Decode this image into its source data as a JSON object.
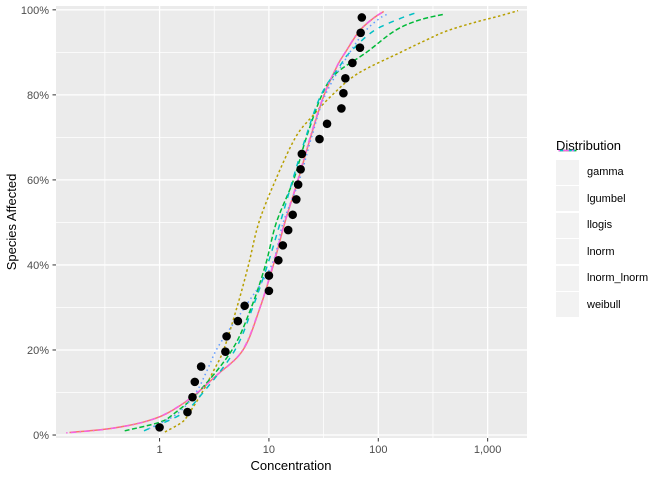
{
  "chart_data": {
    "type": "line",
    "title": "",
    "xlabel": "Concentration",
    "ylabel": "Species Affected",
    "x_scale": "log10",
    "x_domain": [
      0.113,
      2290
    ],
    "y_domain_pct": [
      -0.7,
      100.9
    ],
    "x_major_ticks": [
      {
        "value": 1,
        "label": "1"
      },
      {
        "value": 10,
        "label": "10"
      },
      {
        "value": 100,
        "label": "100"
      },
      {
        "value": 1000,
        "label": "1,000"
      }
    ],
    "x_minor_breaks": [
      0.3162,
      3.162,
      31.62,
      316.2
    ],
    "y_major_ticks": [
      {
        "value": 0,
        "label": "0%"
      },
      {
        "value": 20,
        "label": "20%"
      },
      {
        "value": 40,
        "label": "40%"
      },
      {
        "value": 60,
        "label": "60%"
      },
      {
        "value": 80,
        "label": "80%"
      },
      {
        "value": 100,
        "label": "100%"
      }
    ],
    "y_minor_breaks": [
      10,
      30,
      50,
      70,
      90
    ],
    "colors": {
      "panel_bg": "#EBEBEB",
      "grid": "#FFFFFF",
      "tick": "#333333",
      "axis_text": "#4D4D4D",
      "axis_title": "#000000",
      "point": "#000000",
      "legend_key_bg": "#F2F2F2"
    },
    "scatter_points": [
      [
        1.0,
        1.8
      ],
      [
        1.8,
        5.4
      ],
      [
        2.0,
        8.9
      ],
      [
        2.1,
        12.5
      ],
      [
        2.4,
        16.1
      ],
      [
        4.0,
        19.6
      ],
      [
        4.1,
        23.2
      ],
      [
        5.2,
        26.8
      ],
      [
        6.0,
        30.4
      ],
      [
        10,
        33.9
      ],
      [
        10,
        37.5
      ],
      [
        12.2,
        41.1
      ],
      [
        13.4,
        44.6
      ],
      [
        15,
        48.2
      ],
      [
        16.5,
        51.8
      ],
      [
        17.8,
        55.4
      ],
      [
        18.5,
        58.9
      ],
      [
        19.5,
        62.5
      ],
      [
        20,
        66.1
      ],
      [
        29,
        69.6
      ],
      [
        34,
        73.2
      ],
      [
        46,
        76.8
      ],
      [
        48,
        80.4
      ],
      [
        50,
        83.9
      ],
      [
        58,
        87.5
      ],
      [
        68,
        91.1
      ],
      [
        69,
        94.6
      ],
      [
        70.7,
        98.2
      ]
    ],
    "legend": {
      "title": "Distribution",
      "position": "right"
    },
    "series": [
      {
        "name": "gamma",
        "color": "#F8766D",
        "linetype": "solid",
        "dash": "",
        "anchors": [
          [
            0.15,
            0.6
          ],
          [
            0.35,
            1.5
          ],
          [
            0.7,
            3
          ],
          [
            1.15,
            5
          ],
          [
            2.0,
            9
          ],
          [
            3.3,
            14
          ],
          [
            5.8,
            20
          ],
          [
            8.3,
            30
          ],
          [
            11,
            40
          ],
          [
            14,
            50
          ],
          [
            18.5,
            60
          ],
          [
            24,
            70
          ],
          [
            32,
            80
          ],
          [
            42.5,
            87
          ],
          [
            50,
            90
          ],
          [
            67,
            95
          ],
          [
            90,
            98
          ],
          [
            112,
            99.6
          ]
        ]
      },
      {
        "name": "lgumbel",
        "color": "#B79F00",
        "linetype": "22",
        "dash": "2.5,2.5",
        "anchors": [
          [
            1.12,
            0.7
          ],
          [
            1.6,
            3
          ],
          [
            1.85,
            5
          ],
          [
            2.45,
            10
          ],
          [
            3.1,
            15
          ],
          [
            3.85,
            20
          ],
          [
            5.1,
            30
          ],
          [
            6.5,
            40
          ],
          [
            8.1,
            50
          ],
          [
            11.5,
            60
          ],
          [
            17.5,
            70
          ],
          [
            25,
            75
          ],
          [
            38,
            80
          ],
          [
            65,
            85
          ],
          [
            160,
            90
          ],
          [
            280,
            93
          ],
          [
            420,
            95
          ],
          [
            750,
            97
          ],
          [
            1300,
            98.6
          ],
          [
            1900,
            99.8
          ]
        ]
      },
      {
        "name": "llogis",
        "color": "#00BA38",
        "linetype": "42",
        "dash": "5,2.5",
        "anchors": [
          [
            0.48,
            1
          ],
          [
            1.0,
            3
          ],
          [
            1.35,
            5
          ],
          [
            2.25,
            10
          ],
          [
            4.6,
            20
          ],
          [
            6.9,
            30
          ],
          [
            9.3,
            40
          ],
          [
            11.7,
            50
          ],
          [
            16.8,
            60
          ],
          [
            22,
            70
          ],
          [
            30.5,
            80
          ],
          [
            41,
            85
          ],
          [
            78,
            90
          ],
          [
            140,
            95
          ],
          [
            230,
            97.5
          ],
          [
            405,
            99
          ]
        ]
      },
      {
        "name": "lnorm",
        "color": "#00BFC4",
        "linetype": "44",
        "dash": "5.5,5.5",
        "anchors": [
          [
            0.72,
            1
          ],
          [
            1.6,
            5
          ],
          [
            2.5,
            10
          ],
          [
            4.9,
            20
          ],
          [
            7.1,
            30
          ],
          [
            9.7,
            40
          ],
          [
            12.7,
            50
          ],
          [
            16.5,
            60
          ],
          [
            21.7,
            70
          ],
          [
            30,
            80
          ],
          [
            45,
            87
          ],
          [
            55,
            90
          ],
          [
            90,
            95
          ],
          [
            160,
            98
          ],
          [
            215,
            99.2
          ]
        ]
      },
      {
        "name": "lnorm_lnorm",
        "color": "#619CFF",
        "linetype": "13",
        "dash": "1.5,3.2",
        "anchors": [
          [
            0.8,
            1.5
          ],
          [
            1.45,
            5
          ],
          [
            2.15,
            10
          ],
          [
            2.7,
            15
          ],
          [
            3.3,
            20
          ],
          [
            4.4,
            25
          ],
          [
            6.0,
            30
          ],
          [
            10.6,
            40
          ],
          [
            13.5,
            50
          ],
          [
            19,
            60
          ],
          [
            24.5,
            70
          ],
          [
            32.8,
            80
          ],
          [
            55,
            90
          ],
          [
            76,
            95
          ],
          [
            103,
            98
          ],
          [
            122,
            99
          ]
        ]
      },
      {
        "name": "weibull",
        "color": "#F564E3",
        "linetype": "1343",
        "dash": "1.5,3.2,5.5,3.2",
        "anchors": [
          [
            0.14,
            0.5
          ],
          [
            0.33,
            1.4
          ],
          [
            0.68,
            2.9
          ],
          [
            1.12,
            4.9
          ],
          [
            1.95,
            8.8
          ],
          [
            3.25,
            13.8
          ],
          [
            5.7,
            19.8
          ],
          [
            8.2,
            29.7
          ],
          [
            10.8,
            39.7
          ],
          [
            13.8,
            49.7
          ],
          [
            18.2,
            59.7
          ],
          [
            23.6,
            69.7
          ],
          [
            31.5,
            79.7
          ],
          [
            42,
            86.8
          ],
          [
            49.3,
            89.8
          ],
          [
            66,
            94.8
          ],
          [
            88.5,
            97.9
          ],
          [
            109,
            99.4
          ]
        ]
      }
    ]
  }
}
